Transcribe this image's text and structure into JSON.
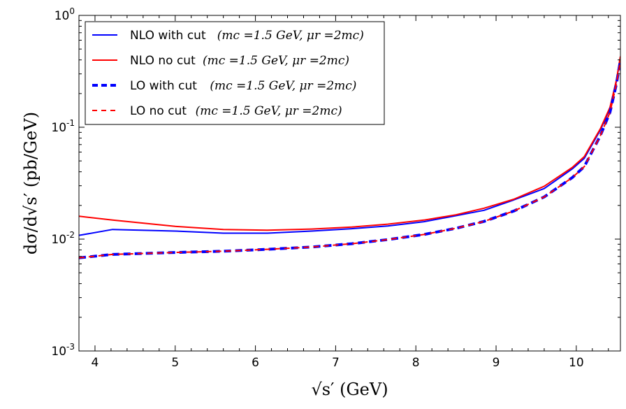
{
  "chart_data": {
    "type": "line",
    "yscale": "log",
    "xlim": [
      3.8,
      10.55
    ],
    "ylim": [
      0.001,
      1
    ],
    "xticks": [
      4,
      5,
      6,
      7,
      8,
      9,
      10
    ],
    "xtick_labels": [
      "4",
      "5",
      "6",
      "7",
      "8",
      "9",
      "10"
    ],
    "ytick_labels": [
      {
        "value": 0.001,
        "base": "10",
        "exp": "-3"
      },
      {
        "value": 0.01,
        "base": "10",
        "exp": "-2"
      },
      {
        "value": 0.1,
        "base": "10",
        "exp": "-1"
      },
      {
        "value": 1,
        "base": "10",
        "exp": "0"
      }
    ],
    "xlabel_text": "√s′  (GeV)",
    "ylabel_text": "dσ/d√s′  (pb/GeV)",
    "legend_position": "top-left",
    "series": [
      {
        "name": "NLO with cut",
        "label_text": "NLO with cut",
        "label_math": "(m",
        "label_suffix": "=1.5 GeV, μ",
        "label_suffix2": "=2m",
        "label_end": ")",
        "color": "#0000ff",
        "style": "solid",
        "x": [
          3.8,
          4.22,
          5.0,
          5.6,
          6.15,
          6.7,
          7.2,
          7.65,
          8.1,
          8.5,
          8.85,
          9.22,
          9.6,
          9.95,
          10.1,
          10.3,
          10.42,
          10.5,
          10.55
        ],
        "y": [
          0.0108,
          0.0122,
          0.0118,
          0.0113,
          0.0113,
          0.0118,
          0.0124,
          0.0131,
          0.0143,
          0.0162,
          0.0181,
          0.0224,
          0.0283,
          0.0424,
          0.0527,
          0.0945,
          0.147,
          0.258,
          0.42
        ]
      },
      {
        "name": "NLO no cut",
        "label_text": "NLO no cut",
        "color": "#ff0000",
        "style": "solid",
        "x": [
          3.8,
          4.22,
          5.0,
          5.6,
          6.15,
          6.7,
          7.2,
          7.65,
          8.1,
          8.5,
          8.85,
          9.22,
          9.6,
          9.95,
          10.1,
          10.3,
          10.42,
          10.5,
          10.55
        ],
        "y": [
          0.016,
          0.0148,
          0.013,
          0.0122,
          0.012,
          0.0123,
          0.0128,
          0.0136,
          0.0148,
          0.0165,
          0.0189,
          0.0227,
          0.0297,
          0.0437,
          0.0546,
          0.097,
          0.151,
          0.265,
          0.43
        ]
      },
      {
        "name": "LO with cut",
        "label_text": "LO with cut",
        "color": "#0000ff",
        "style": "dashed-thick",
        "x": [
          3.8,
          4.22,
          5.0,
          5.6,
          6.15,
          6.7,
          7.2,
          7.65,
          8.1,
          8.5,
          8.85,
          9.22,
          9.6,
          9.95,
          10.1,
          10.3,
          10.42,
          10.5,
          10.55
        ],
        "y": [
          0.0068,
          0.0073,
          0.0076,
          0.0078,
          0.0081,
          0.0085,
          0.0091,
          0.0099,
          0.011,
          0.0125,
          0.0144,
          0.0178,
          0.0238,
          0.0355,
          0.0445,
          0.0842,
          0.136,
          0.244,
          0.395
        ]
      },
      {
        "name": "LO no cut",
        "label_text": "LO no cut",
        "color": "#ff0000",
        "style": "dashed",
        "x": [
          3.8,
          4.22,
          5.0,
          5.6,
          6.15,
          6.7,
          7.2,
          7.65,
          8.1,
          8.5,
          8.85,
          9.22,
          9.6,
          9.95,
          10.1,
          10.3,
          10.42,
          10.5,
          10.55
        ],
        "y": [
          0.0068,
          0.0073,
          0.0076,
          0.0078,
          0.0081,
          0.0085,
          0.0091,
          0.0099,
          0.011,
          0.0125,
          0.0144,
          0.0178,
          0.0238,
          0.0355,
          0.0445,
          0.0842,
          0.136,
          0.244,
          0.395
        ]
      }
    ],
    "legend_suffix": "(mc =1.5 GeV, μr =2mc)"
  }
}
